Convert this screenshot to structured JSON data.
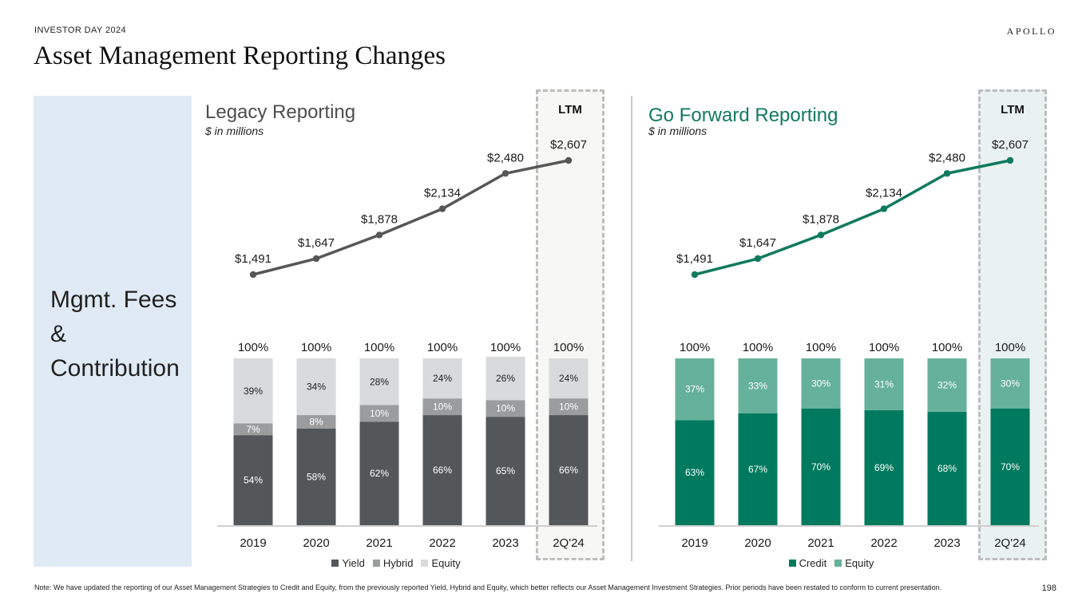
{
  "header": {
    "kicker": "INVESTOR DAY 2024",
    "title": "Asset Management Reporting Changes",
    "logo": "APOLLO"
  },
  "side_panel": {
    "label": "Mgmt. Fees\n&\nContribution",
    "color": "#dfeaf5"
  },
  "footer": {
    "note": "Note: We have updated the reporting of our Asset Management Strategies to Credit and Equity, from the previously reported Yield, Hybrid and Equity, which better reflects our Asset Management Investment Strategies. Prior periods have been restated to conform to current presentation.",
    "page_number": "198"
  },
  "chart_data": [
    {
      "id": "legacy",
      "type": "line+stacked-bar",
      "title": "Legacy Reporting",
      "subtitle": "$ in millions",
      "highlight_label": "LTM",
      "highlight_category": "2Q'24",
      "categories": [
        "2019",
        "2020",
        "2021",
        "2022",
        "2023",
        "2Q'24"
      ],
      "line": {
        "name": "Mgmt. Fees",
        "values": [
          1491,
          1647,
          1878,
          2134,
          2480,
          2607
        ],
        "labels": [
          "$1,491",
          "$1,647",
          "$1,878",
          "$2,134",
          "$2,480",
          "$2,607"
        ],
        "color": "#575757"
      },
      "totals": [
        "100%",
        "100%",
        "100%",
        "100%",
        "100%",
        "100%"
      ],
      "series": [
        {
          "name": "Yield",
          "values": [
            54,
            58,
            62,
            66,
            65,
            66
          ],
          "color": "#53575a",
          "label_color": "#ffffff"
        },
        {
          "name": "Hybrid",
          "values": [
            7,
            8,
            10,
            10,
            10,
            10
          ],
          "color": "#9a9c9d",
          "label_color": "#ffffff"
        },
        {
          "name": "Equity",
          "values": [
            39,
            34,
            28,
            24,
            26,
            24
          ],
          "color": "#d9dadb",
          "label_color": "#222222"
        }
      ],
      "ylim": [
        0,
        100
      ]
    },
    {
      "id": "forward",
      "type": "line+stacked-bar",
      "title": "Go Forward Reporting",
      "subtitle": "$ in millions",
      "highlight_label": "LTM",
      "highlight_category": "2Q'24",
      "categories": [
        "2019",
        "2020",
        "2021",
        "2022",
        "2023",
        "2Q'24"
      ],
      "line": {
        "name": "Mgmt. Fees",
        "values": [
          1491,
          1647,
          1878,
          2134,
          2480,
          2607
        ],
        "labels": [
          "$1,491",
          "$1,647",
          "$1,878",
          "$2,134",
          "$2,480",
          "$2,607"
        ],
        "color": "#0f7a5e"
      },
      "totals": [
        "100%",
        "100%",
        "100%",
        "100%",
        "100%",
        "100%"
      ],
      "series": [
        {
          "name": "Credit",
          "values": [
            63,
            67,
            70,
            69,
            68,
            70
          ],
          "color": "#007a5e",
          "label_color": "#ffffff"
        },
        {
          "name": "Equity",
          "values": [
            37,
            33,
            30,
            31,
            32,
            30
          ],
          "color": "#66b19b",
          "label_color": "#ffffff"
        }
      ],
      "ylim": [
        0,
        100
      ]
    }
  ]
}
